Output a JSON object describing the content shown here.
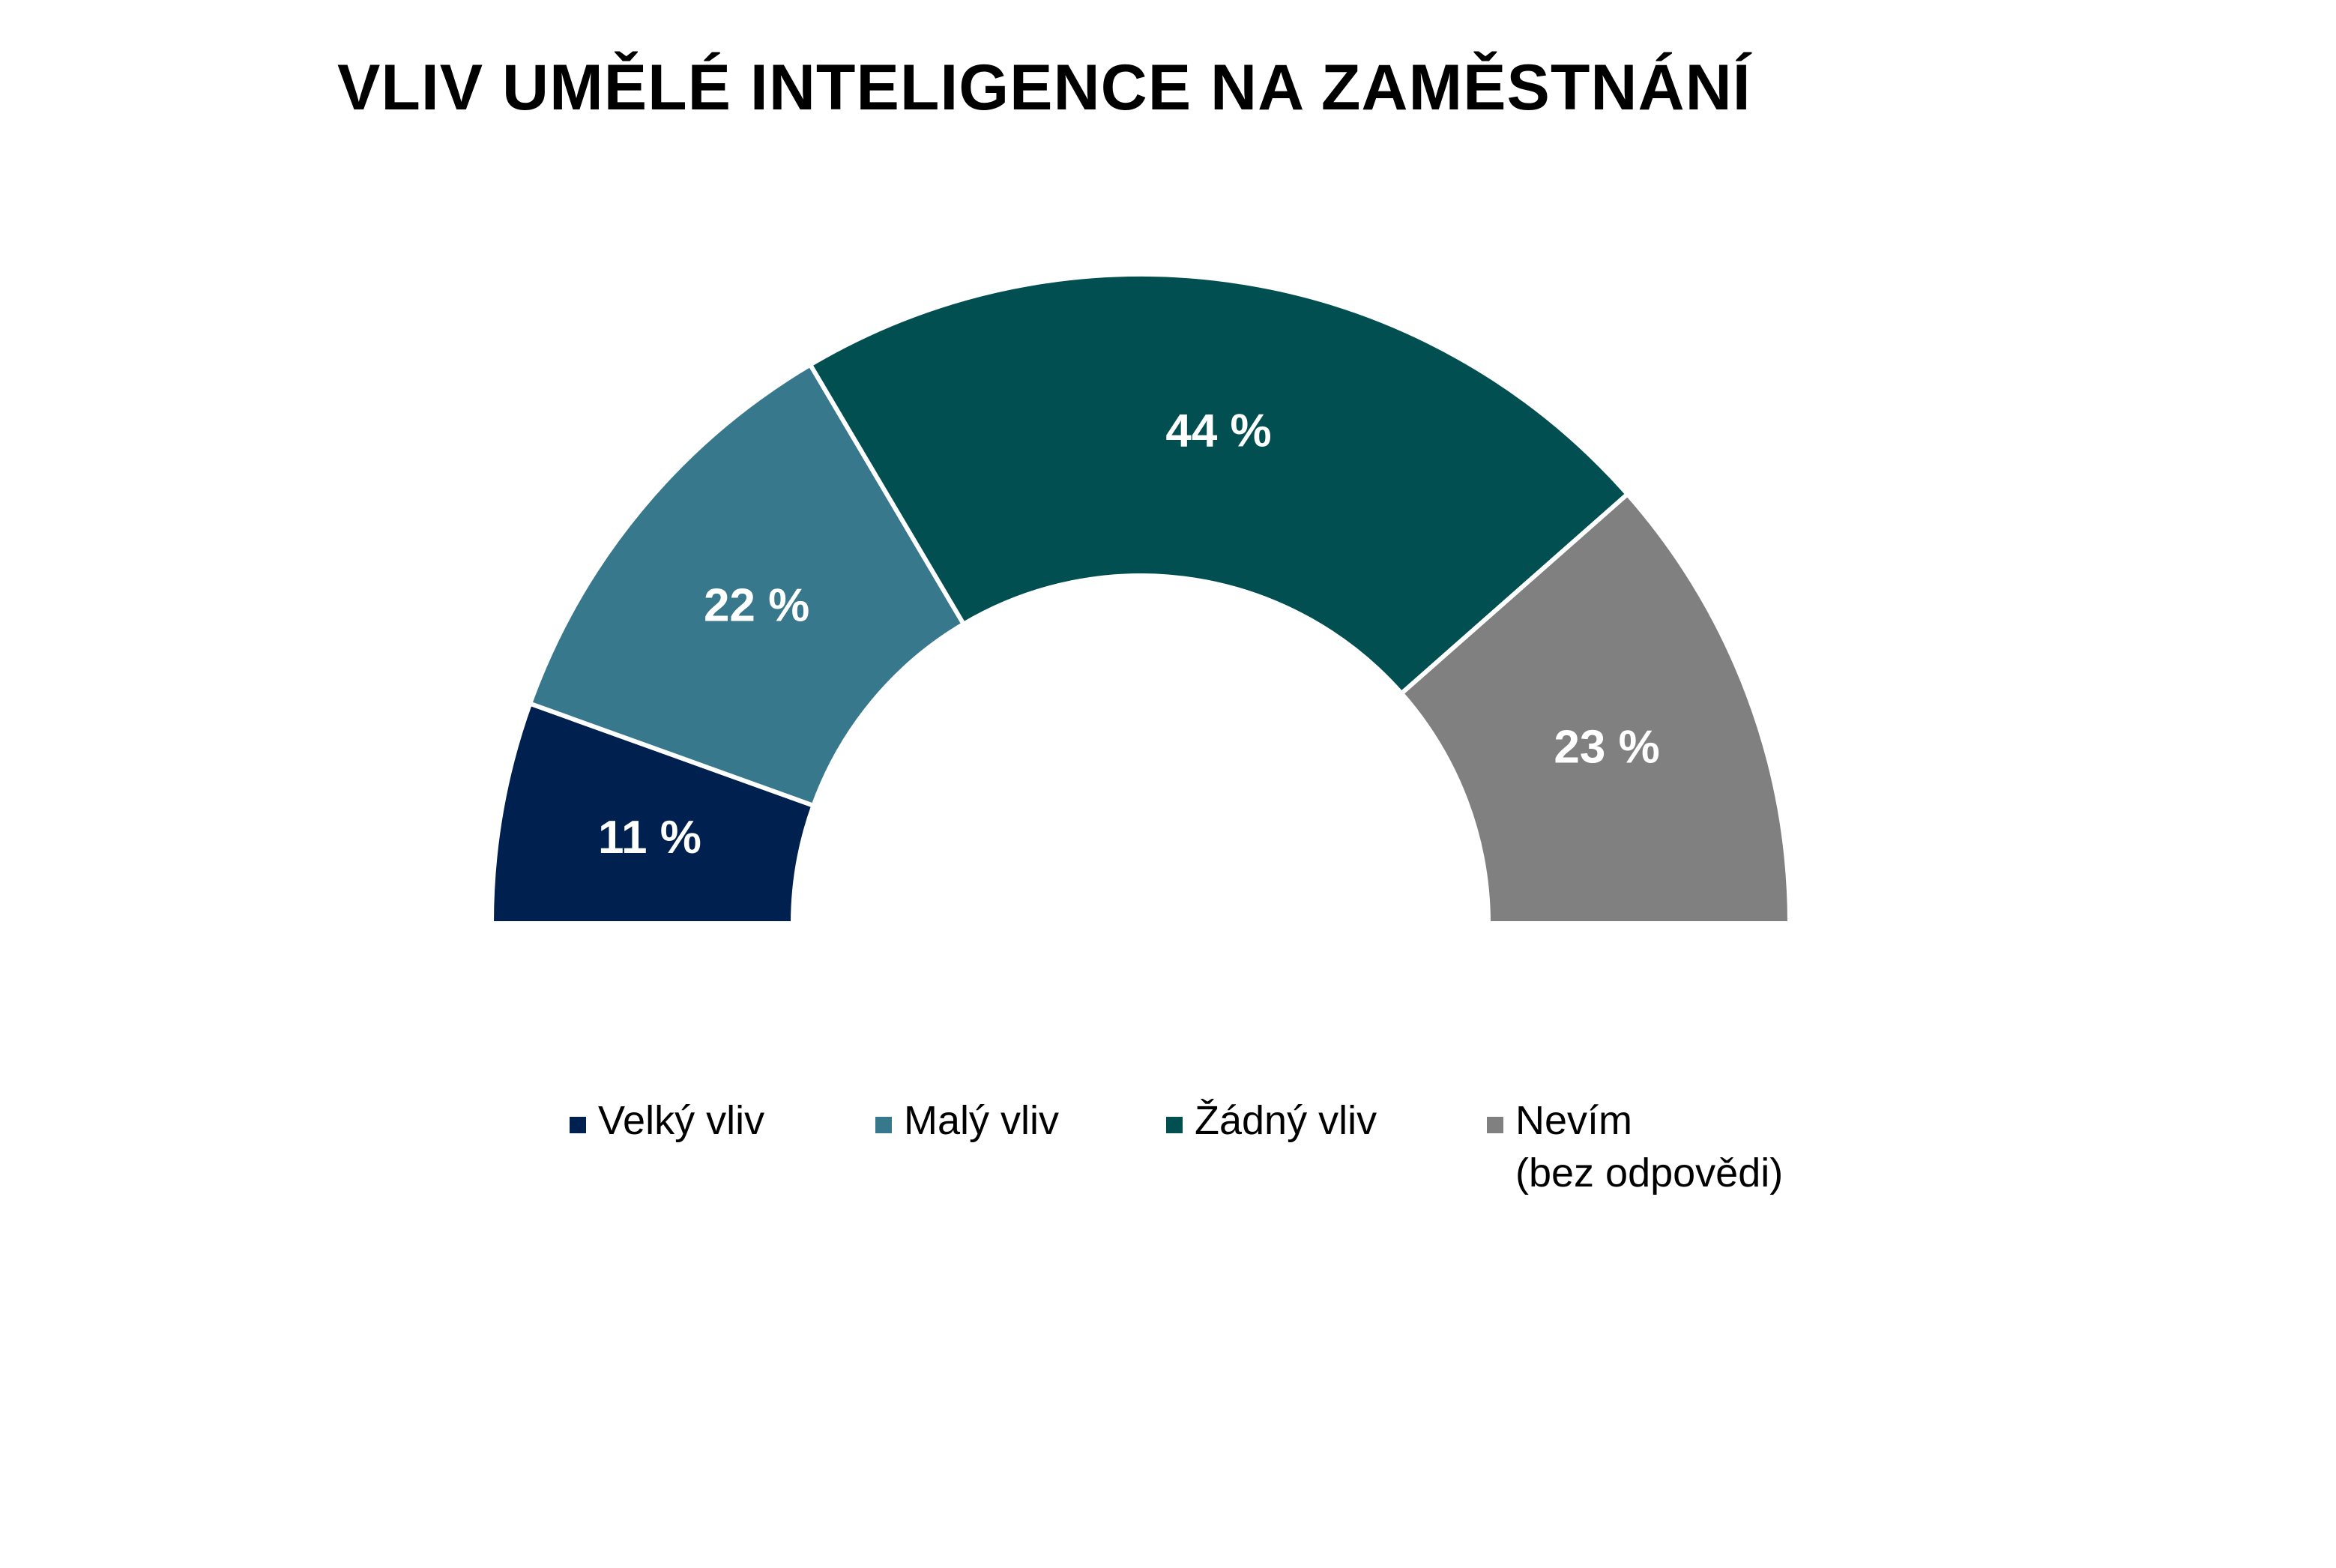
{
  "chart_data": {
    "type": "pie",
    "variant": "half-donut",
    "title": "VLIV UMĚLÉ INTELIGENCE NA ZAMĚSTNÁNÍ",
    "categories": [
      "Velký vliv",
      "Malý vliv",
      "Žádný vliv",
      "Nevím\n(bez odpovědi)"
    ],
    "values": [
      11,
      22,
      44,
      23
    ],
    "value_labels": [
      "11 %",
      "22 %",
      "44 %",
      "23 %"
    ],
    "colors": [
      "#002050",
      "#37788d",
      "#024f51",
      "#808080"
    ],
    "unit": "%",
    "legend_position": "bottom"
  }
}
